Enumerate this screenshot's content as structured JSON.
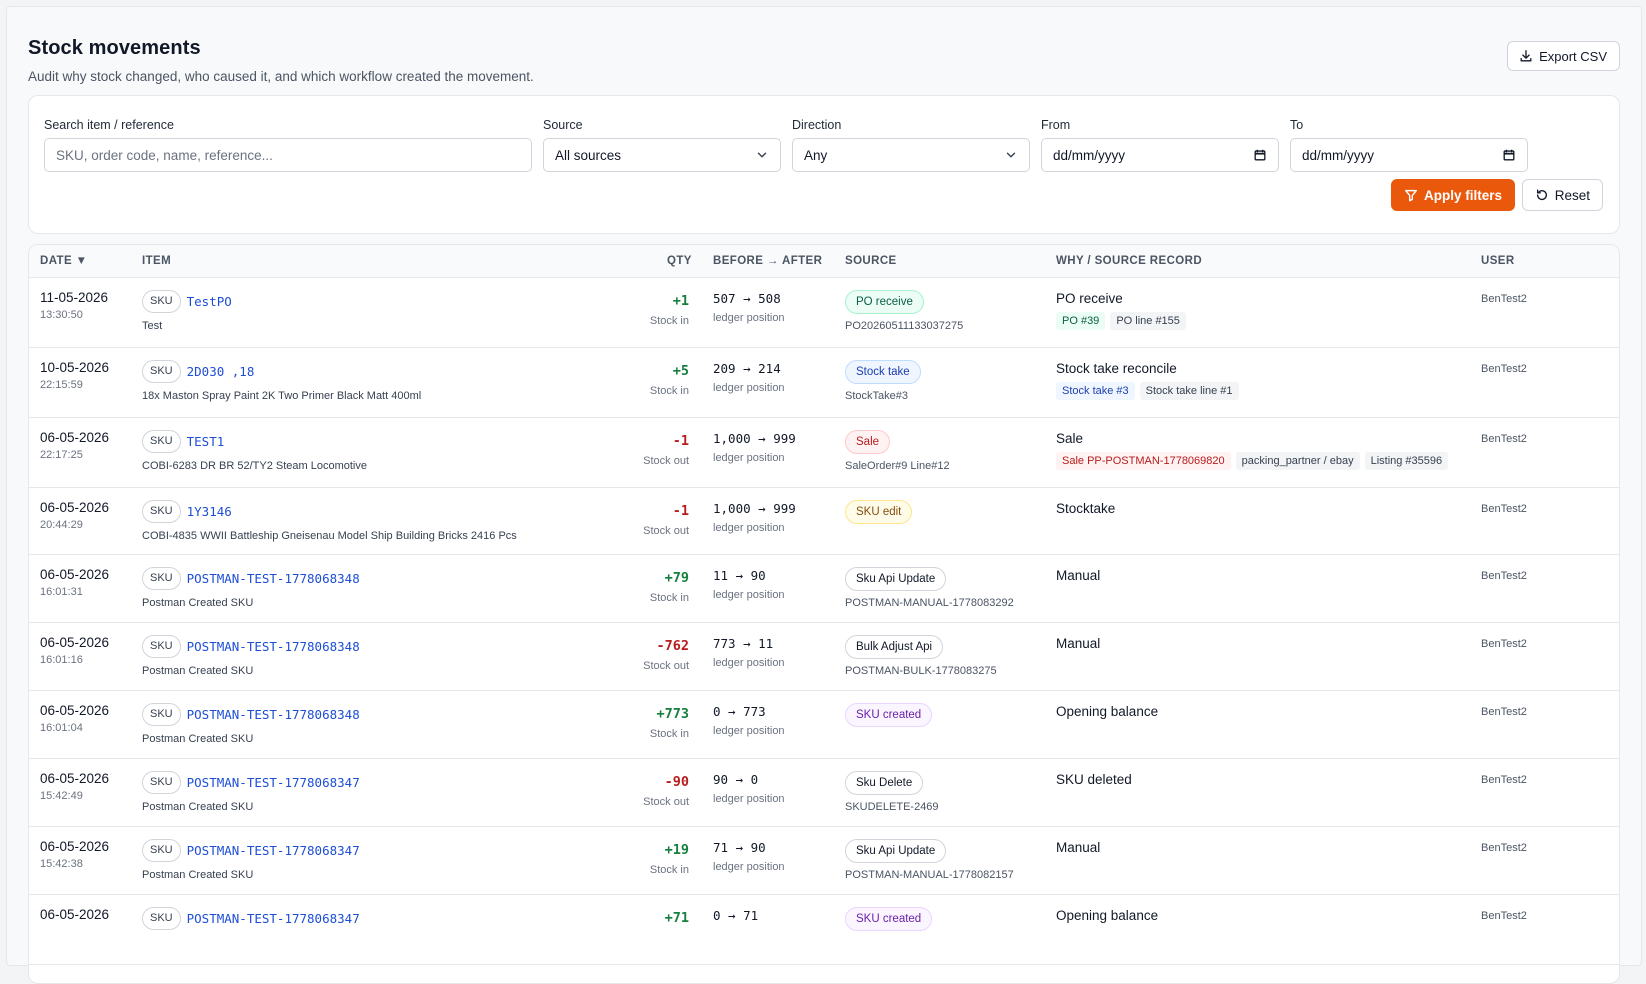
{
  "header": {
    "title": "Stock movements",
    "subtitle": "Audit why stock changed, who caused it, and which workflow created the movement.",
    "export_label": "Export CSV"
  },
  "filters": {
    "search_label": "Search item / reference",
    "search_placeholder": "SKU, order code, name, reference...",
    "source_label": "Source",
    "source_value": "All sources",
    "direction_label": "Direction",
    "direction_value": "Any",
    "from_label": "From",
    "from_placeholder": "dd/mm/yyyy",
    "to_label": "To",
    "to_placeholder": "dd/mm/yyyy",
    "apply_label": "Apply filters",
    "reset_label": "Reset"
  },
  "table": {
    "headers": {
      "date": "DATE ▼",
      "item": "ITEM",
      "qty": "QTY",
      "before_after": "BEFORE → AFTER",
      "source": "SOURCE",
      "why": "WHY / SOURCE RECORD",
      "user": "USER"
    },
    "rows": [
      {
        "date": "11-05-2026",
        "time": "13:30:50",
        "sku_badge": "SKU",
        "sku": "TestPO",
        "name": "Test",
        "qty": "+1",
        "qty_label": "Stock in",
        "ba": "507 → 508",
        "ba_label": "ledger position",
        "source": "PO receive",
        "source_color": "green",
        "source_ref": "PO20260511133037275",
        "why": "PO receive",
        "tags": [
          {
            "text": "PO #39",
            "color": "green"
          },
          {
            "text": "PO line #155",
            "color": "gray"
          }
        ],
        "user": "BenTest2"
      },
      {
        "date": "10-05-2026",
        "time": "22:15:59",
        "sku_badge": "SKU",
        "sku": "2D030 ,18",
        "name": "18x Maston Spray Paint 2K Two Primer Black Matt 400ml",
        "qty": "+5",
        "qty_label": "Stock in",
        "ba": "209 → 214",
        "ba_label": "ledger position",
        "source": "Stock take",
        "source_color": "blue",
        "source_ref": "StockTake#3",
        "why": "Stock take reconcile",
        "tags": [
          {
            "text": "Stock take #3",
            "color": "blue"
          },
          {
            "text": "Stock take line #1",
            "color": "gray"
          }
        ],
        "user": "BenTest2"
      },
      {
        "date": "06-05-2026",
        "time": "22:17:25",
        "sku_badge": "SKU",
        "sku": "TEST1",
        "name": "COBI-6283 DR BR 52/TY2 Steam Locomotive",
        "qty": "-1",
        "qty_label": "Stock out",
        "ba": "1,000 → 999",
        "ba_label": "ledger position",
        "source": "Sale",
        "source_color": "red",
        "source_ref": "SaleOrder#9 Line#12",
        "why": "Sale",
        "tags": [
          {
            "text": "Sale PP-POSTMAN-1778069820",
            "color": "red"
          },
          {
            "text": "packing_partner / ebay",
            "color": "gray"
          },
          {
            "text": "Listing #35596",
            "color": "gray"
          }
        ],
        "user": "BenTest2"
      },
      {
        "date": "06-05-2026",
        "time": "20:44:29",
        "sku_badge": "SKU",
        "sku": "1Y3146",
        "name": "COBI-4835 WWII Battleship Gneisenau Model Ship Building Bricks 2416 Pcs",
        "qty": "-1",
        "qty_label": "Stock out",
        "ba": "1,000 → 999",
        "ba_label": "ledger position",
        "source": "SKU edit",
        "source_color": "yellow",
        "source_ref": "",
        "why": "Stocktake",
        "tags": [],
        "user": "BenTest2"
      },
      {
        "date": "06-05-2026",
        "time": "16:01:31",
        "sku_badge": "SKU",
        "sku": "POSTMAN-TEST-1778068348",
        "name": "Postman Created SKU",
        "qty": "+79",
        "qty_label": "Stock in",
        "ba": "11 → 90",
        "ba_label": "ledger position",
        "source": "Sku Api Update",
        "source_color": "gray",
        "source_ref": "POSTMAN-MANUAL-1778083292",
        "why": "Manual",
        "tags": [],
        "user": "BenTest2"
      },
      {
        "date": "06-05-2026",
        "time": "16:01:16",
        "sku_badge": "SKU",
        "sku": "POSTMAN-TEST-1778068348",
        "name": "Postman Created SKU",
        "qty": "-762",
        "qty_label": "Stock out",
        "ba": "773 → 11",
        "ba_label": "ledger position",
        "source": "Bulk Adjust Api",
        "source_color": "gray",
        "source_ref": "POSTMAN-BULK-1778083275",
        "why": "Manual",
        "tags": [],
        "user": "BenTest2"
      },
      {
        "date": "06-05-2026",
        "time": "16:01:04",
        "sku_badge": "SKU",
        "sku": "POSTMAN-TEST-1778068348",
        "name": "Postman Created SKU",
        "qty": "+773",
        "qty_label": "Stock in",
        "ba": "0 → 773",
        "ba_label": "ledger position",
        "source": "SKU created",
        "source_color": "purple",
        "source_ref": "",
        "why": "Opening balance",
        "tags": [],
        "user": "BenTest2"
      },
      {
        "date": "06-05-2026",
        "time": "15:42:49",
        "sku_badge": "SKU",
        "sku": "POSTMAN-TEST-1778068347",
        "name": "Postman Created SKU",
        "qty": "-90",
        "qty_label": "Stock out",
        "ba": "90 → 0",
        "ba_label": "ledger position",
        "source": "Sku Delete",
        "source_color": "gray",
        "source_ref": "SKUDELETE-2469",
        "why": "SKU deleted",
        "tags": [],
        "user": "BenTest2"
      },
      {
        "date": "06-05-2026",
        "time": "15:42:38",
        "sku_badge": "SKU",
        "sku": "POSTMAN-TEST-1778068347",
        "name": "Postman Created SKU",
        "qty": "+19",
        "qty_label": "Stock in",
        "ba": "71 → 90",
        "ba_label": "ledger position",
        "source": "Sku Api Update",
        "source_color": "gray",
        "source_ref": "POSTMAN-MANUAL-1778082157",
        "why": "Manual",
        "tags": [],
        "user": "BenTest2"
      },
      {
        "date": "06-05-2026",
        "time": "",
        "sku_badge": "SKU",
        "sku": "POSTMAN-TEST-1778068347",
        "name": "",
        "qty": "+71",
        "qty_label": "",
        "ba": "0 → 71",
        "ba_label": "",
        "source": "SKU created",
        "source_color": "purple",
        "source_ref": "",
        "why": "Opening balance",
        "tags": [],
        "user": "BenTest2"
      }
    ]
  }
}
